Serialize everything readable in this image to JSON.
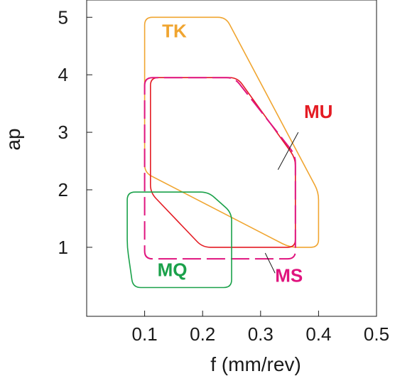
{
  "chart_data": {
    "type": "area",
    "title": "",
    "xlabel": "f (mm/rev)",
    "ylabel": "ap",
    "xlim": [
      0,
      0.5
    ],
    "ylim": [
      -0.2,
      5.3
    ],
    "xticks": [
      0.1,
      0.2,
      0.3,
      0.4,
      0.5
    ],
    "xtick_labels": [
      "0.1",
      "0.2",
      "0.3",
      "0.4",
      "0.5"
    ],
    "yticks": [
      1,
      2,
      3,
      4,
      5
    ],
    "ytick_labels": [
      "1",
      "2",
      "3",
      "4",
      "5"
    ],
    "grid": false,
    "regions": [
      {
        "name": "TK",
        "color": "#f0a530",
        "dash": "solid",
        "points": [
          [
            0.1,
            5.0
          ],
          [
            0.24,
            5.0
          ],
          [
            0.4,
            1.96
          ],
          [
            0.4,
            1.0
          ],
          [
            0.35,
            1.0
          ],
          [
            0.1,
            2.3
          ]
        ]
      },
      {
        "name": "MU",
        "color": "#e41b23",
        "dash": "solid",
        "points": [
          [
            0.11,
            3.95
          ],
          [
            0.26,
            3.95
          ],
          [
            0.36,
            2.55
          ],
          [
            0.36,
            1.0
          ],
          [
            0.2,
            1.0
          ],
          [
            0.11,
            1.95
          ]
        ]
      },
      {
        "name": "MS",
        "color": "#e0147e",
        "dash": "dashed",
        "points": [
          [
            0.1,
            3.95
          ],
          [
            0.255,
            3.95
          ],
          [
            0.36,
            2.6
          ],
          [
            0.36,
            0.8
          ],
          [
            0.1,
            0.8
          ]
        ]
      },
      {
        "name": "MQ",
        "color": "#1aa14a",
        "dash": "solid",
        "points": [
          [
            0.07,
            1.96
          ],
          [
            0.21,
            1.96
          ],
          [
            0.25,
            1.6
          ],
          [
            0.25,
            0.3
          ],
          [
            0.08,
            0.3
          ],
          [
            0.07,
            1.0
          ]
        ]
      }
    ],
    "annotations": [
      {
        "text": "TK",
        "series": "TK",
        "x": 0.13,
        "y": 4.65,
        "color": "#f0a530"
      },
      {
        "text": "MU",
        "series": "MU",
        "x": 0.375,
        "y": 3.25,
        "color": "#e41b23"
      },
      {
        "text": "MS",
        "series": "MS",
        "x": 0.325,
        "y": 0.4,
        "color": "#e0147e"
      },
      {
        "text": "MQ",
        "series": "MQ",
        "x": 0.122,
        "y": 0.5,
        "color": "#1aa14a"
      }
    ],
    "leader_lines": [
      {
        "series": "MU",
        "from": [
          0.365,
          3.0
        ],
        "to": [
          0.33,
          2.35
        ]
      },
      {
        "series": "MS",
        "from": [
          0.325,
          0.55
        ],
        "to": [
          0.308,
          0.9
        ]
      }
    ]
  }
}
